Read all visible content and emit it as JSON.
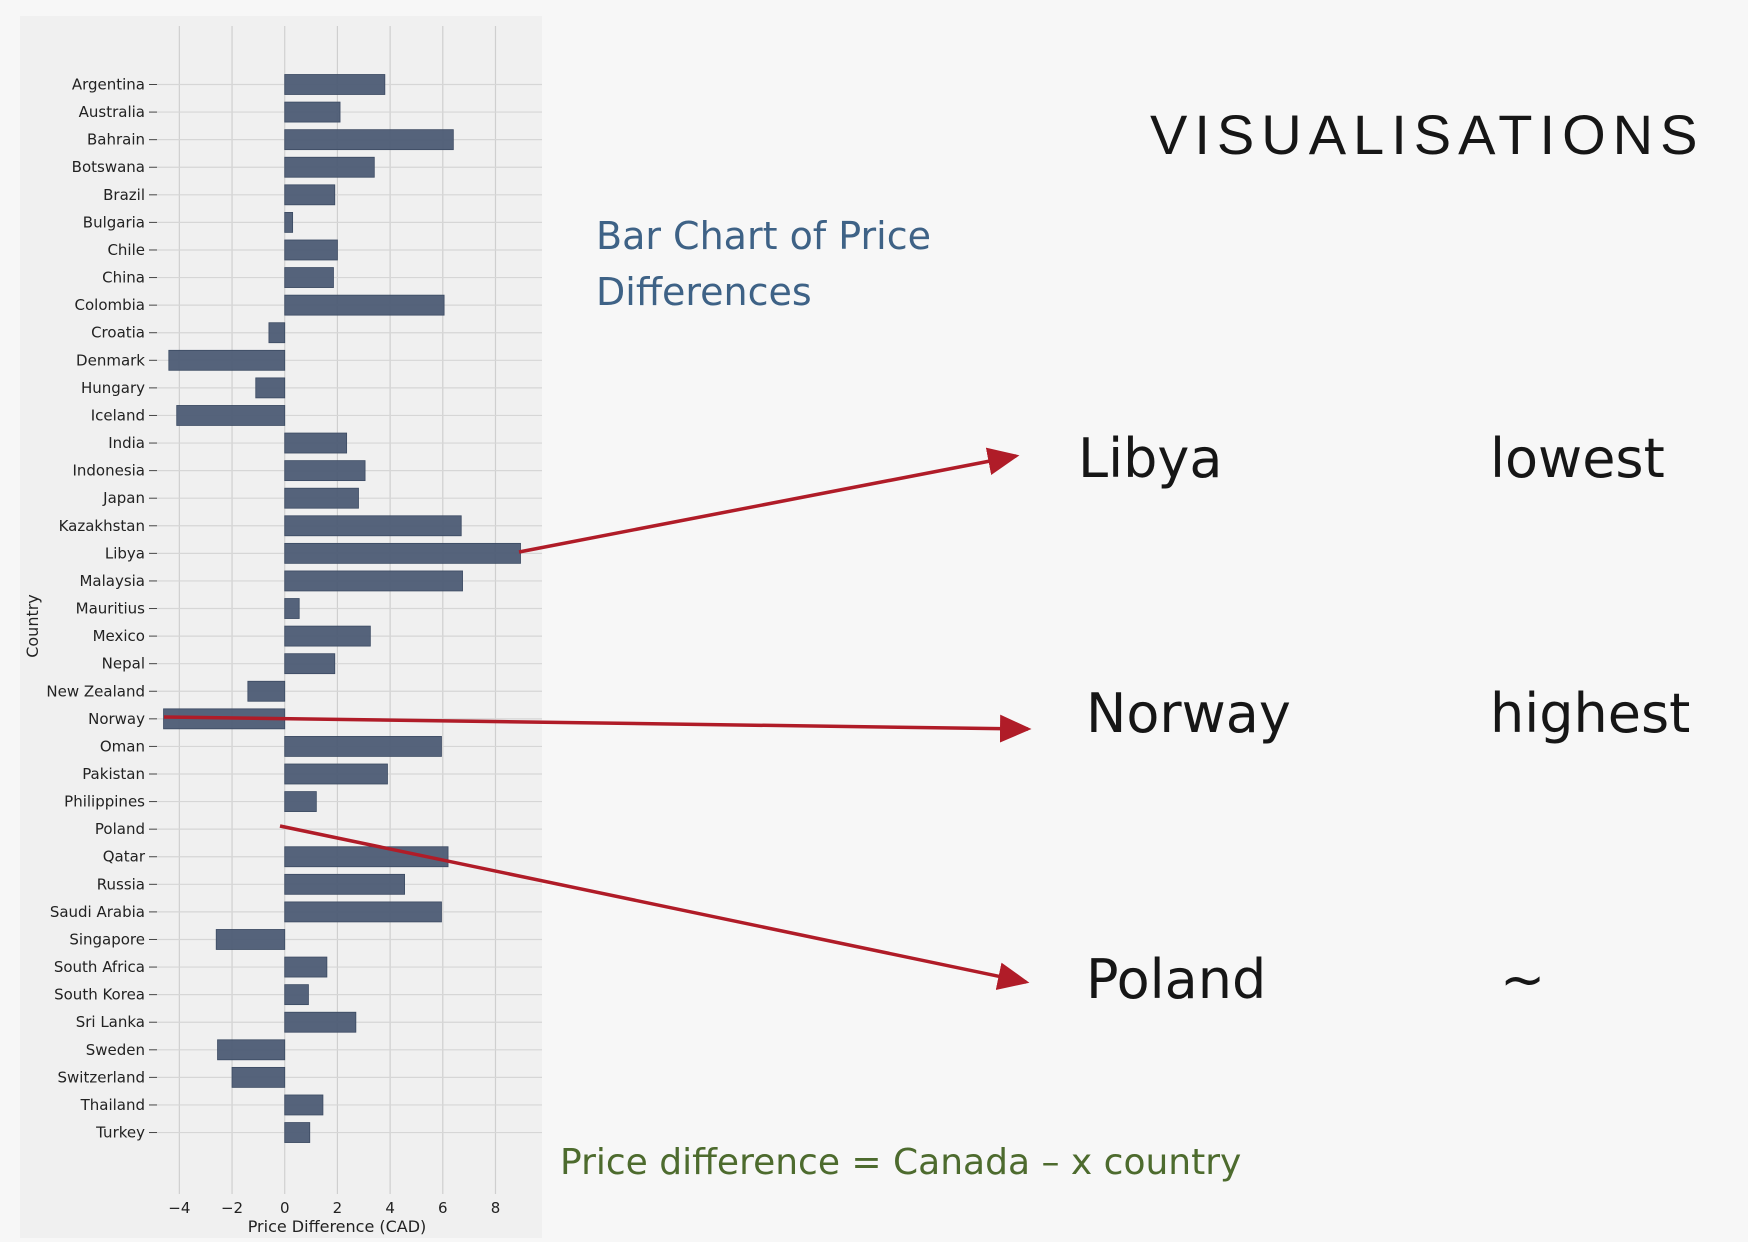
{
  "slide": {
    "title": "VISUALISATIONS",
    "subtitle": "Bar Chart of Price Differences",
    "formula": "Price difference = Canada – x country",
    "callouts": [
      {
        "country": "Libya",
        "label": "lowest"
      },
      {
        "country": "Norway",
        "label": "highest"
      },
      {
        "country": "Poland",
        "label": "~"
      }
    ]
  },
  "chart_data": {
    "type": "bar",
    "orientation": "horizontal",
    "xlabel": "Price Difference (CAD)",
    "ylabel": "Country",
    "xlim": [
      -5,
      9.5
    ],
    "xticks": [
      -4,
      -2,
      0,
      2,
      4,
      6,
      8
    ],
    "xtick_labels": [
      "−4",
      "−2",
      "0",
      "2",
      "4",
      "6",
      "8"
    ],
    "grid": true,
    "bar_color": "#4e5d76",
    "categories": [
      "Argentina",
      "Australia",
      "Bahrain",
      "Botswana",
      "Brazil",
      "Bulgaria",
      "Chile",
      "China",
      "Colombia",
      "Croatia",
      "Denmark",
      "Hungary",
      "Iceland",
      "India",
      "Indonesia",
      "Japan",
      "Kazakhstan",
      "Libya",
      "Malaysia",
      "Mauritius",
      "Mexico",
      "Nepal",
      "New Zealand",
      "Norway",
      "Oman",
      "Pakistan",
      "Philippines",
      "Poland",
      "Qatar",
      "Russia",
      "Saudi Arabia",
      "Singapore",
      "South Africa",
      "South Korea",
      "Sri Lanka",
      "Sweden",
      "Switzerland",
      "Thailand",
      "Turkey"
    ],
    "values": [
      3.8,
      2.1,
      6.4,
      3.4,
      1.9,
      0.3,
      2.0,
      1.85,
      6.05,
      -0.6,
      -4.4,
      -1.1,
      -4.1,
      2.35,
      3.05,
      2.8,
      6.7,
      8.95,
      6.75,
      0.55,
      3.25,
      1.9,
      -1.4,
      -4.6,
      5.95,
      3.9,
      1.2,
      0.0,
      6.2,
      4.55,
      5.95,
      -2.6,
      1.6,
      0.9,
      2.7,
      -2.55,
      -2.0,
      1.45,
      0.95
    ],
    "annotation_color": "#b01c28"
  }
}
